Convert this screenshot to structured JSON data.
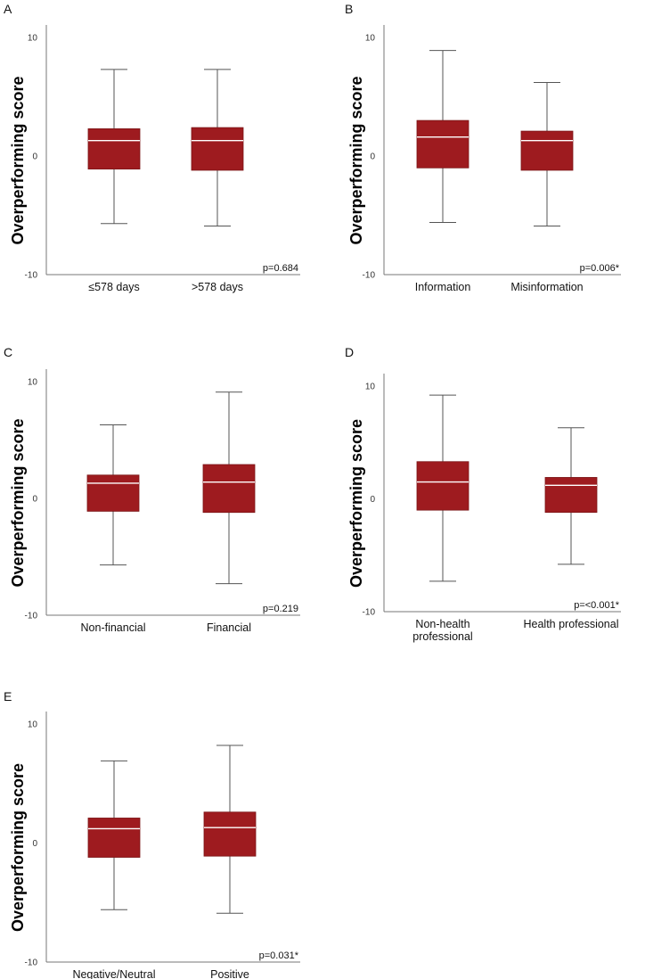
{
  "chart_data": [
    {
      "type": "box",
      "panel": "A",
      "ylabel": "Overperforming score",
      "ylim": [
        -10,
        10
      ],
      "yticks": [
        -10,
        0,
        10
      ],
      "categories": [
        [
          "≤578 days"
        ],
        [
          ">578 days"
        ]
      ],
      "boxes": [
        {
          "min": -5.7,
          "q1": -1.1,
          "median": 1.3,
          "q3": 2.3,
          "max": 7.3,
          "color": "#9e1b1f"
        },
        {
          "min": -5.9,
          "q1": -1.2,
          "median": 1.3,
          "q3": 2.4,
          "max": 7.3,
          "color": "#9e1b1f"
        }
      ],
      "p_value": "p=0.684"
    },
    {
      "type": "box",
      "panel": "B",
      "ylabel": "Overperforming score",
      "ylim": [
        -10,
        10
      ],
      "yticks": [
        -10,
        0,
        10
      ],
      "categories": [
        [
          "Information"
        ],
        [
          "Misinformation"
        ]
      ],
      "boxes": [
        {
          "min": -5.6,
          "q1": -1.0,
          "median": 1.6,
          "q3": 3.0,
          "max": 8.9,
          "color": "#9e1b1f"
        },
        {
          "min": -5.9,
          "q1": -1.2,
          "median": 1.3,
          "q3": 2.1,
          "max": 6.2,
          "color": "#9e1b1f"
        }
      ],
      "p_value": "p=0.006*"
    },
    {
      "type": "box",
      "panel": "C",
      "ylabel": "Overperforming score",
      "ylim": [
        -10,
        10
      ],
      "yticks": [
        -10,
        0,
        10
      ],
      "categories": [
        [
          "Non-financial"
        ],
        [
          "Financial"
        ]
      ],
      "boxes": [
        {
          "min": -5.7,
          "q1": -1.1,
          "median": 1.3,
          "q3": 2.0,
          "max": 6.3,
          "color": "#9e1b1f"
        },
        {
          "min": -7.3,
          "q1": -1.2,
          "median": 1.4,
          "q3": 2.9,
          "max": 9.1,
          "color": "#9e1b1f"
        }
      ],
      "p_value": "p=0.219"
    },
    {
      "type": "box",
      "panel": "D",
      "ylabel": "Overperforming score",
      "ylim": [
        -10,
        10
      ],
      "yticks": [
        -10,
        0,
        10
      ],
      "categories": [
        [
          "Non-health",
          "professional"
        ],
        [
          "Health professional"
        ]
      ],
      "boxes": [
        {
          "min": -7.3,
          "q1": -1.0,
          "median": 1.5,
          "q3": 3.3,
          "max": 9.2,
          "color": "#9e1b1f"
        },
        {
          "min": -5.8,
          "q1": -1.2,
          "median": 1.2,
          "q3": 1.9,
          "max": 6.3,
          "color": "#9e1b1f"
        }
      ],
      "p_value": "p=<0.001*"
    },
    {
      "type": "box",
      "panel": "E",
      "ylabel": "Overperforming score",
      "ylim": [
        -10,
        10
      ],
      "yticks": [
        -10,
        0,
        10
      ],
      "categories": [
        [
          "Negative/Neutral"
        ],
        [
          "Positive"
        ]
      ],
      "boxes": [
        {
          "min": -5.6,
          "q1": -1.2,
          "median": 1.2,
          "q3": 2.1,
          "max": 6.9,
          "color": "#9e1b1f"
        },
        {
          "min": -5.9,
          "q1": -1.1,
          "median": 1.3,
          "q3": 2.6,
          "max": 8.2,
          "color": "#9e1b1f"
        }
      ],
      "p_value": "p=0.031*"
    }
  ]
}
